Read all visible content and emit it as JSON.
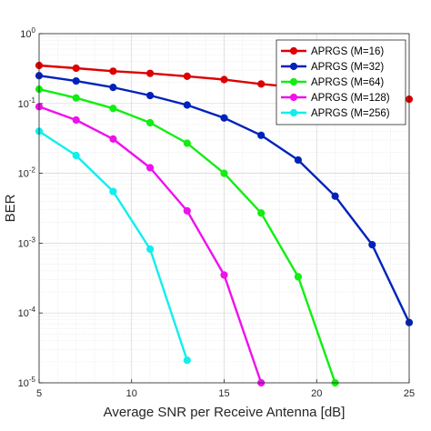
{
  "chart_data": {
    "type": "line",
    "title": "",
    "xlabel": "Average SNR per Receive Antenna [dB]",
    "ylabel": "BER",
    "xlim": [
      5,
      25
    ],
    "ylim": [
      1e-05,
      1
    ],
    "yscale": "log",
    "xticks": [
      5,
      10,
      15,
      20,
      25
    ],
    "yticks": [
      {
        "value": 1,
        "base": "10",
        "exp": "0"
      },
      {
        "value": 0.1,
        "base": "10",
        "exp": "-1"
      },
      {
        "value": 0.01,
        "base": "10",
        "exp": "-2"
      },
      {
        "value": 0.001,
        "base": "10",
        "exp": "-3"
      },
      {
        "value": 0.0001,
        "base": "10",
        "exp": "-4"
      },
      {
        "value": 1e-05,
        "base": "10",
        "exp": "-5"
      }
    ],
    "grid": true,
    "minor_grid": true,
    "legend_position": "top-right",
    "series": [
      {
        "name": "APRGS (M=16)",
        "color": "#dd0000",
        "x": [
          5,
          7,
          9,
          11,
          13,
          15,
          17,
          19,
          21,
          23,
          25
        ],
        "y": [
          0.35,
          0.32,
          0.29,
          0.27,
          0.245,
          0.22,
          0.19,
          0.17,
          0.15,
          0.13,
          0.115
        ]
      },
      {
        "name": "APRGS (M=32)",
        "color": "#0022bb",
        "x": [
          5,
          7,
          9,
          11,
          13,
          15,
          17,
          19,
          21,
          23,
          25
        ],
        "y": [
          0.25,
          0.21,
          0.17,
          0.13,
          0.095,
          0.062,
          0.035,
          0.0155,
          0.0047,
          0.00095,
          7.3e-05
        ]
      },
      {
        "name": "APRGS (M=64)",
        "color": "#11ee11",
        "x": [
          5,
          7,
          9,
          11,
          13,
          15,
          17,
          19,
          21
        ],
        "y": [
          0.16,
          0.12,
          0.085,
          0.053,
          0.027,
          0.01,
          0.0027,
          0.00033,
          1e-05
        ]
      },
      {
        "name": "APRGS (M=128)",
        "color": "#ee11ee",
        "x": [
          5,
          7,
          9,
          11,
          13,
          15,
          17
        ],
        "y": [
          0.09,
          0.058,
          0.031,
          0.012,
          0.0029,
          0.00035,
          1e-05
        ]
      },
      {
        "name": "APRGS (M=256)",
        "color": "#11eeee",
        "x": [
          5,
          7,
          9,
          11,
          13
        ],
        "y": [
          0.04,
          0.018,
          0.0055,
          0.00082,
          2.1e-05
        ]
      }
    ]
  }
}
